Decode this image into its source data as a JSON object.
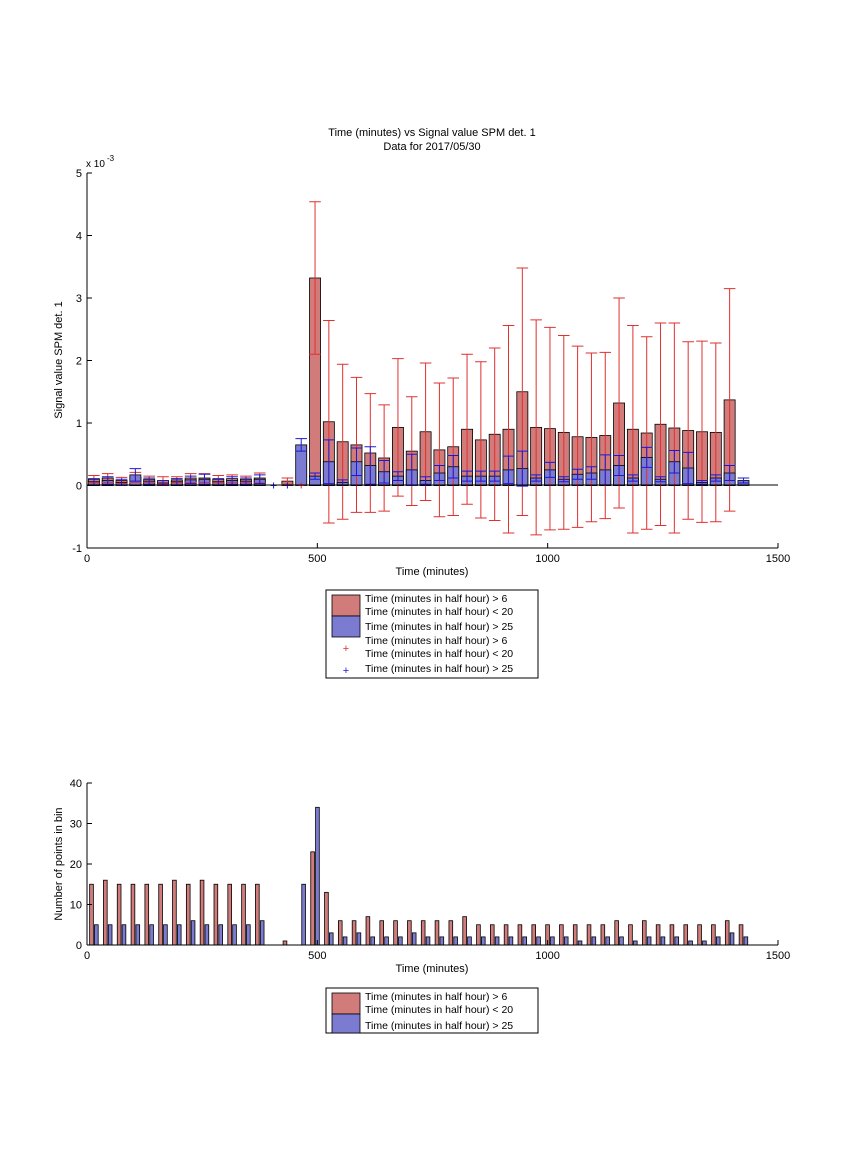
{
  "colors": {
    "red_bar": "#d17b7b",
    "blue_bar": "#7b7bd1",
    "red_err": "#e03030",
    "blue_err": "#1a1ad6",
    "axis": "#000000",
    "background": "#ffffff"
  },
  "chart_data": [
    {
      "type": "bar",
      "title": "Time (minutes) vs Signal value SPM det. 1",
      "subtitle": "Data for 2017/05/30",
      "xlabel": "Time (minutes)",
      "ylabel": "Signal value SPM det. 1",
      "y_exponent": "x 10",
      "y_exponent_power": "-3",
      "xlim": [
        0,
        1500
      ],
      "ylim": [
        -1,
        5
      ],
      "x_ticks": [
        "0",
        "500",
        "1000",
        "1500"
      ],
      "y_ticks": [
        "-1",
        "0",
        "1",
        "2",
        "3",
        "4",
        "5"
      ],
      "grid": false,
      "legend_position": "below",
      "x": [
        15,
        45,
        75,
        105,
        135,
        165,
        195,
        225,
        255,
        285,
        315,
        345,
        375,
        405,
        435,
        465,
        495,
        525,
        555,
        585,
        615,
        645,
        675,
        705,
        735,
        765,
        795,
        825,
        855,
        885,
        915,
        945,
        975,
        1005,
        1035,
        1065,
        1095,
        1125,
        1155,
        1185,
        1215,
        1245,
        1275,
        1305,
        1335,
        1365,
        1395,
        1425
      ],
      "series": [
        {
          "name": "Time (minutes in half hour) > 6\nTime (minutes in half hour) < 20",
          "values": [
            0.1,
            0.12,
            0.08,
            0.13,
            0.1,
            0.08,
            0.09,
            0.12,
            0.12,
            0.1,
            0.11,
            0.1,
            0.12,
            0,
            0.07,
            0,
            3.32,
            1.02,
            0.7,
            0.65,
            0.52,
            0.44,
            0.93,
            0.55,
            0.86,
            0.57,
            0.62,
            0.9,
            0.73,
            0.82,
            0.9,
            1.5,
            0.93,
            0.91,
            0.85,
            0.78,
            0.77,
            0.8,
            1.32,
            0.9,
            0.84,
            0.98,
            0.92,
            0.88,
            0.86,
            0.85,
            1.37,
            0
          ],
          "errors": [
            0.06,
            0.07,
            0.05,
            0.08,
            0.05,
            0.06,
            0.05,
            0.07,
            0.07,
            0.06,
            0.06,
            0.05,
            0.08,
            0,
            0.05,
            0,
            1.22,
            1.62,
            1.24,
            1.08,
            0.95,
            0.85,
            1.1,
            0.87,
            1.1,
            1.07,
            1.1,
            1.2,
            1.25,
            1.38,
            1.66,
            1.98,
            1.72,
            1.62,
            1.55,
            1.45,
            1.35,
            1.33,
            1.68,
            1.66,
            1.54,
            1.62,
            1.68,
            1.42,
            1.45,
            1.43,
            1.78,
            0
          ]
        },
        {
          "name": "Time (minutes in half hour) > 25",
          "values": [
            0.06,
            0.08,
            0.05,
            0.17,
            0.07,
            0.04,
            0.06,
            0.09,
            0.1,
            0.06,
            0.08,
            0.07,
            0.1,
            0,
            0,
            0.65,
            0.15,
            0.38,
            0.05,
            0.38,
            0.32,
            0.22,
            0.15,
            0.25,
            0.08,
            0.2,
            0.3,
            0.15,
            0.15,
            0.15,
            0.25,
            0.27,
            0.12,
            0.25,
            0.1,
            0.18,
            0.2,
            0.25,
            0.32,
            0.12,
            0.45,
            0.1,
            0.38,
            0.28,
            0.05,
            0.12,
            0.2,
            0.08
          ],
          "errors": [
            0.05,
            0.06,
            0.05,
            0.1,
            0.05,
            0.04,
            0.05,
            0.06,
            0.08,
            0.05,
            0.06,
            0.05,
            0.07,
            0,
            0,
            0.1,
            0.05,
            0.35,
            0.04,
            0.22,
            0.3,
            0.18,
            0.07,
            0.25,
            0.06,
            0.12,
            0.18,
            0.08,
            0.08,
            0.08,
            0.22,
            0.28,
            0.05,
            0.12,
            0.04,
            0.08,
            0.1,
            0.24,
            0.16,
            0.05,
            0.16,
            0.04,
            0.18,
            0.25,
            0.03,
            0.05,
            0.12,
            0.04
          ]
        }
      ],
      "point_series": [
        {
          "name": "Time (minutes in half hour) > 6\nTime (minutes in half hour) < 20",
          "marker": "+",
          "x": [
            465
          ],
          "values": [
            0
          ]
        },
        {
          "name": "Time (minutes in half hour) > 25",
          "marker": "+",
          "x": [
            405,
            435
          ],
          "values": [
            0,
            0
          ]
        }
      ]
    },
    {
      "type": "bar",
      "xlabel": "Time (minutes)",
      "ylabel": "Number of points in bin",
      "xlim": [
        0,
        1500
      ],
      "ylim": [
        0,
        40
      ],
      "x_ticks": [
        "0",
        "500",
        "1000",
        "1500"
      ],
      "y_ticks": [
        "0",
        "10",
        "20",
        "30",
        "40"
      ],
      "grid": false,
      "legend_position": "below",
      "x": [
        15,
        45,
        75,
        105,
        135,
        165,
        195,
        225,
        255,
        285,
        315,
        345,
        375,
        405,
        435,
        465,
        495,
        525,
        555,
        585,
        615,
        645,
        675,
        705,
        735,
        765,
        795,
        825,
        855,
        885,
        915,
        945,
        975,
        1005,
        1035,
        1065,
        1095,
        1125,
        1155,
        1185,
        1215,
        1245,
        1275,
        1305,
        1335,
        1365,
        1395,
        1425
      ],
      "series": [
        {
          "name": "Time (minutes in half hour) > 6\nTime (minutes in half hour) < 20",
          "values": [
            15,
            16,
            15,
            15,
            15,
            15,
            16,
            15,
            16,
            15,
            15,
            15,
            15,
            0,
            1,
            0,
            23,
            13,
            6,
            6,
            7,
            6,
            6,
            6,
            6,
            6,
            6,
            7,
            5,
            5,
            5,
            5,
            5,
            5,
            5,
            5,
            5,
            5,
            6,
            5,
            6,
            5,
            5,
            5,
            5,
            5,
            6,
            5
          ]
        },
        {
          "name": "Time (minutes in half hour) > 25",
          "values": [
            5,
            5,
            5,
            5,
            5,
            5,
            5,
            6,
            5,
            5,
            5,
            5,
            6,
            0,
            0,
            15,
            34,
            3,
            2,
            3,
            2,
            2,
            2,
            3,
            2,
            2,
            2,
            2,
            2,
            2,
            2,
            2,
            2,
            2,
            2,
            1,
            2,
            2,
            2,
            1,
            2,
            2,
            2,
            1,
            1,
            2,
            3,
            2
          ]
        }
      ]
    }
  ]
}
